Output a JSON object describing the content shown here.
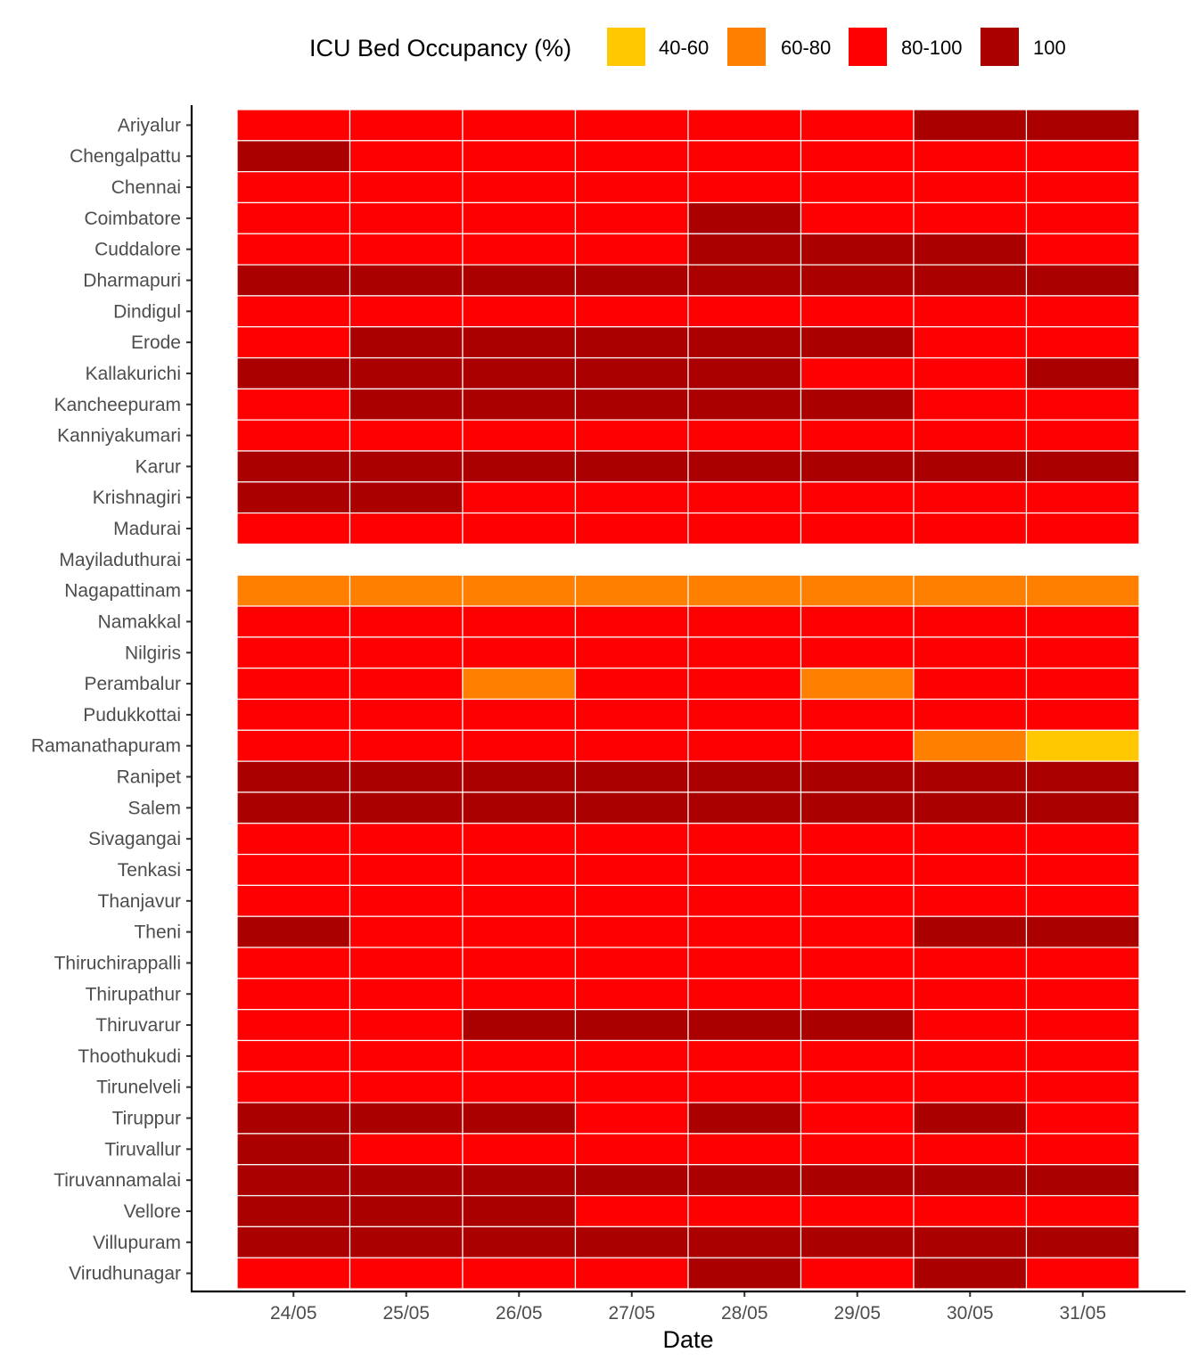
{
  "chart_data": {
    "type": "heatmap",
    "xlabel": "Date",
    "ylabel": "",
    "legend": {
      "title": "ICU Bed Occupancy (%)",
      "position": "top",
      "items": [
        {
          "label": "40-60",
          "color": "#FFC800"
        },
        {
          "label": "60-80",
          "color": "#FF7F00"
        },
        {
          "label": "80-100",
          "color": "#FF0000"
        },
        {
          "label": "100",
          "color": "#AA0000"
        }
      ]
    },
    "x": [
      "24/05",
      "25/05",
      "26/05",
      "27/05",
      "28/05",
      "29/05",
      "30/05",
      "31/05"
    ],
    "y": [
      "Ariyalur",
      "Chengalpattu",
      "Chennai",
      "Coimbatore",
      "Cuddalore",
      "Dharmapuri",
      "Dindigul",
      "Erode",
      "Kallakurichi",
      "Kancheepuram",
      "Kanniyakumari",
      "Karur",
      "Krishnagiri",
      "Madurai",
      "Mayiladuthurai",
      "Nagapattinam",
      "Namakkal",
      "Nilgiris",
      "Perambalur",
      "Pudukkottai",
      "Ramanathapuram",
      "Ranipet",
      "Salem",
      "Sivagangai",
      "Tenkasi",
      "Thanjavur",
      "Theni",
      "Thiruchirappalli",
      "Thirupathur",
      "Thiruvarur",
      "Thoothukudi",
      "Tirunelveli",
      "Tiruppur",
      "Tiruvallur",
      "Tiruvannamalai",
      "Vellore",
      "Villupuram",
      "Virudhunagar"
    ],
    "values": [
      [
        "80-100",
        "80-100",
        "80-100",
        "80-100",
        "80-100",
        "80-100",
        "100",
        "100"
      ],
      [
        "100",
        "80-100",
        "80-100",
        "80-100",
        "80-100",
        "80-100",
        "80-100",
        "80-100"
      ],
      [
        "80-100",
        "80-100",
        "80-100",
        "80-100",
        "80-100",
        "80-100",
        "80-100",
        "80-100"
      ],
      [
        "80-100",
        "80-100",
        "80-100",
        "80-100",
        "100",
        "80-100",
        "80-100",
        "80-100"
      ],
      [
        "80-100",
        "80-100",
        "80-100",
        "80-100",
        "100",
        "100",
        "100",
        "80-100"
      ],
      [
        "100",
        "100",
        "100",
        "100",
        "100",
        "100",
        "100",
        "100"
      ],
      [
        "80-100",
        "80-100",
        "80-100",
        "80-100",
        "80-100",
        "80-100",
        "80-100",
        "80-100"
      ],
      [
        "80-100",
        "100",
        "100",
        "100",
        "100",
        "100",
        "80-100",
        "80-100"
      ],
      [
        "100",
        "100",
        "100",
        "100",
        "100",
        "80-100",
        "80-100",
        "100"
      ],
      [
        "80-100",
        "100",
        "100",
        "100",
        "100",
        "100",
        "80-100",
        "80-100"
      ],
      [
        "80-100",
        "80-100",
        "80-100",
        "80-100",
        "80-100",
        "80-100",
        "80-100",
        "80-100"
      ],
      [
        "100",
        "100",
        "100",
        "100",
        "100",
        "100",
        "100",
        "100"
      ],
      [
        "100",
        "100",
        "80-100",
        "80-100",
        "80-100",
        "80-100",
        "80-100",
        "80-100"
      ],
      [
        "80-100",
        "80-100",
        "80-100",
        "80-100",
        "80-100",
        "80-100",
        "80-100",
        "80-100"
      ],
      [
        null,
        null,
        null,
        null,
        null,
        null,
        null,
        null
      ],
      [
        "60-80",
        "60-80",
        "60-80",
        "60-80",
        "60-80",
        "60-80",
        "60-80",
        "60-80"
      ],
      [
        "80-100",
        "80-100",
        "80-100",
        "80-100",
        "80-100",
        "80-100",
        "80-100",
        "80-100"
      ],
      [
        "80-100",
        "80-100",
        "80-100",
        "80-100",
        "80-100",
        "80-100",
        "80-100",
        "80-100"
      ],
      [
        "80-100",
        "80-100",
        "60-80",
        "80-100",
        "80-100",
        "60-80",
        "80-100",
        "80-100"
      ],
      [
        "80-100",
        "80-100",
        "80-100",
        "80-100",
        "80-100",
        "80-100",
        "80-100",
        "80-100"
      ],
      [
        "80-100",
        "80-100",
        "80-100",
        "80-100",
        "80-100",
        "80-100",
        "60-80",
        "40-60"
      ],
      [
        "100",
        "100",
        "100",
        "100",
        "100",
        "100",
        "100",
        "100"
      ],
      [
        "100",
        "100",
        "100",
        "100",
        "100",
        "100",
        "100",
        "100"
      ],
      [
        "80-100",
        "80-100",
        "80-100",
        "80-100",
        "80-100",
        "80-100",
        "80-100",
        "80-100"
      ],
      [
        "80-100",
        "80-100",
        "80-100",
        "80-100",
        "80-100",
        "80-100",
        "80-100",
        "80-100"
      ],
      [
        "80-100",
        "80-100",
        "80-100",
        "80-100",
        "80-100",
        "80-100",
        "80-100",
        "80-100"
      ],
      [
        "100",
        "80-100",
        "80-100",
        "80-100",
        "80-100",
        "80-100",
        "100",
        "100"
      ],
      [
        "80-100",
        "80-100",
        "80-100",
        "80-100",
        "80-100",
        "80-100",
        "80-100",
        "80-100"
      ],
      [
        "80-100",
        "80-100",
        "80-100",
        "80-100",
        "80-100",
        "80-100",
        "80-100",
        "80-100"
      ],
      [
        "80-100",
        "80-100",
        "100",
        "100",
        "100",
        "100",
        "80-100",
        "80-100"
      ],
      [
        "80-100",
        "80-100",
        "80-100",
        "80-100",
        "80-100",
        "80-100",
        "80-100",
        "80-100"
      ],
      [
        "80-100",
        "80-100",
        "80-100",
        "80-100",
        "80-100",
        "80-100",
        "80-100",
        "80-100"
      ],
      [
        "100",
        "100",
        "100",
        "80-100",
        "100",
        "80-100",
        "100",
        "80-100"
      ],
      [
        "100",
        "80-100",
        "80-100",
        "80-100",
        "80-100",
        "80-100",
        "80-100",
        "80-100"
      ],
      [
        "100",
        "100",
        "100",
        "100",
        "100",
        "100",
        "100",
        "100"
      ],
      [
        "100",
        "100",
        "100",
        "80-100",
        "80-100",
        "80-100",
        "80-100",
        "80-100"
      ],
      [
        "100",
        "100",
        "100",
        "100",
        "100",
        "100",
        "100",
        "100"
      ],
      [
        "80-100",
        "80-100",
        "80-100",
        "80-100",
        "100",
        "80-100",
        "100",
        "80-100"
      ]
    ],
    "grid": false
  }
}
